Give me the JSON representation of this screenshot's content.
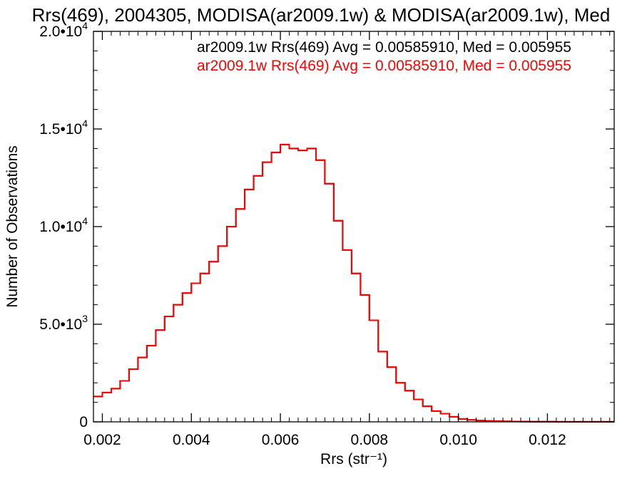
{
  "chart_data": {
    "type": "line",
    "title": "Rrs(469), 2004305, MODISA(ar2009.1w) & MODISA(ar2009.1w), Med",
    "xlabel": "Rrs (str⁻¹)",
    "ylabel": "Number of Observations",
    "xlim": [
      0.0018,
      0.0135
    ],
    "ylim": [
      0,
      20000
    ],
    "x_ticks": [
      0.002,
      0.004,
      0.006,
      0.008,
      0.01,
      0.012
    ],
    "x_tick_labels": [
      "0.002",
      "0.004",
      "0.006",
      "0.008",
      "0.010",
      "0.012"
    ],
    "y_ticks": [
      0,
      5000,
      10000,
      15000,
      20000
    ],
    "y_tick_labels": [
      {
        "base": "0",
        "exp": ""
      },
      {
        "base": "5.0•10",
        "exp": "3"
      },
      {
        "base": "1.0•10",
        "exp": "4"
      },
      {
        "base": "1.5•10",
        "exp": "4"
      },
      {
        "base": "2.0•10",
        "exp": "4"
      }
    ],
    "grid": false,
    "legend_position": "top-right",
    "series": [
      {
        "name": "ar2009.1w Rrs(469) Avg = 0.00585910, Med = 0.005955",
        "color": "#000000",
        "x": [
          0.0018,
          0.002,
          0.0022,
          0.0024,
          0.0026,
          0.0028,
          0.003,
          0.0032,
          0.0034,
          0.0036,
          0.0038,
          0.004,
          0.0042,
          0.0044,
          0.0046,
          0.0048,
          0.005,
          0.0052,
          0.0054,
          0.0056,
          0.0058,
          0.006,
          0.0062,
          0.0064,
          0.0066,
          0.0068,
          0.007,
          0.0072,
          0.0074,
          0.0076,
          0.0078,
          0.008,
          0.0082,
          0.0084,
          0.0086,
          0.0088,
          0.009,
          0.0092,
          0.0094,
          0.0096,
          0.0098,
          0.01,
          0.0102,
          0.0104,
          0.0106,
          0.0108,
          0.011,
          0.0112,
          0.0114,
          0.0116,
          0.0118,
          0.012,
          0.0122,
          0.0124,
          0.0126,
          0.0128,
          0.013,
          0.0132,
          0.0135
        ],
        "y": [
          1300,
          1500,
          1700,
          2100,
          2700,
          3300,
          3900,
          4700,
          5400,
          6000,
          6600,
          7100,
          7600,
          8200,
          9000,
          10000,
          10900,
          11900,
          12600,
          13300,
          13800,
          14200,
          14000,
          13900,
          14000,
          13400,
          12200,
          10300,
          8800,
          7600,
          6500,
          5200,
          3600,
          2800,
          2000,
          1600,
          1150,
          800,
          550,
          420,
          260,
          150,
          100,
          70,
          50,
          40,
          30,
          20,
          15,
          10,
          10,
          8,
          5,
          5,
          5,
          5,
          5,
          5,
          5
        ]
      },
      {
        "name": "ar2009.1w Rrs(469) Avg = 0.00585910, Med = 0.005955",
        "color": "#ff0000",
        "x": [
          0.0018,
          0.002,
          0.0022,
          0.0024,
          0.0026,
          0.0028,
          0.003,
          0.0032,
          0.0034,
          0.0036,
          0.0038,
          0.004,
          0.0042,
          0.0044,
          0.0046,
          0.0048,
          0.005,
          0.0052,
          0.0054,
          0.0056,
          0.0058,
          0.006,
          0.0062,
          0.0064,
          0.0066,
          0.0068,
          0.007,
          0.0072,
          0.0074,
          0.0076,
          0.0078,
          0.008,
          0.0082,
          0.0084,
          0.0086,
          0.0088,
          0.009,
          0.0092,
          0.0094,
          0.0096,
          0.0098,
          0.01,
          0.0102,
          0.0104,
          0.0106,
          0.0108,
          0.011,
          0.0112,
          0.0114,
          0.0116,
          0.0118,
          0.012,
          0.0122,
          0.0124,
          0.0126,
          0.0128,
          0.013,
          0.0132,
          0.0135
        ],
        "y": [
          1300,
          1500,
          1700,
          2100,
          2700,
          3300,
          3900,
          4700,
          5400,
          6000,
          6600,
          7100,
          7600,
          8200,
          9000,
          10000,
          10900,
          11900,
          12600,
          13300,
          13800,
          14200,
          14000,
          13900,
          14000,
          13400,
          12200,
          10300,
          8800,
          7600,
          6500,
          5200,
          3600,
          2800,
          2000,
          1600,
          1150,
          800,
          550,
          420,
          260,
          150,
          100,
          70,
          50,
          40,
          30,
          20,
          15,
          10,
          10,
          8,
          5,
          5,
          5,
          5,
          5,
          5,
          5
        ]
      }
    ]
  }
}
